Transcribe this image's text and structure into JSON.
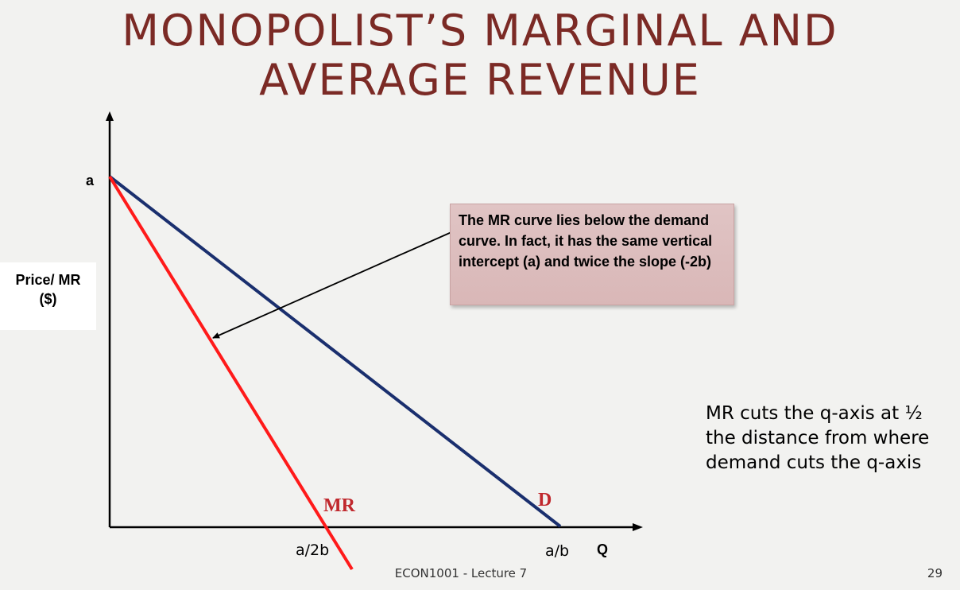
{
  "title": {
    "line1": "MONOPOLIST’S MARGINAL AND",
    "line2": "AVERAGE REVENUE"
  },
  "y_axis": {
    "label_line1": "Price/ MR",
    "label_line2": "($)",
    "intercept_label": "a"
  },
  "x_axis": {
    "label": "Q",
    "mr_intercept_label": "a/2b",
    "demand_intercept_label": "a/b"
  },
  "curves": {
    "demand": {
      "label": "D",
      "color": "#1a2f6e"
    },
    "mr": {
      "label": "MR",
      "color": "#ff1a1a",
      "label_color": "#c0282d"
    }
  },
  "callout": {
    "text": "The MR curve lies below the demand curve. In fact, it has the same vertical intercept (a) and twice the slope (-2b)"
  },
  "note": "MR cuts the q-axis at ½ the distance from where demand cuts the q-axis",
  "footer": {
    "course": "ECON1001 - Lecture 7",
    "slide_number": "29"
  }
}
